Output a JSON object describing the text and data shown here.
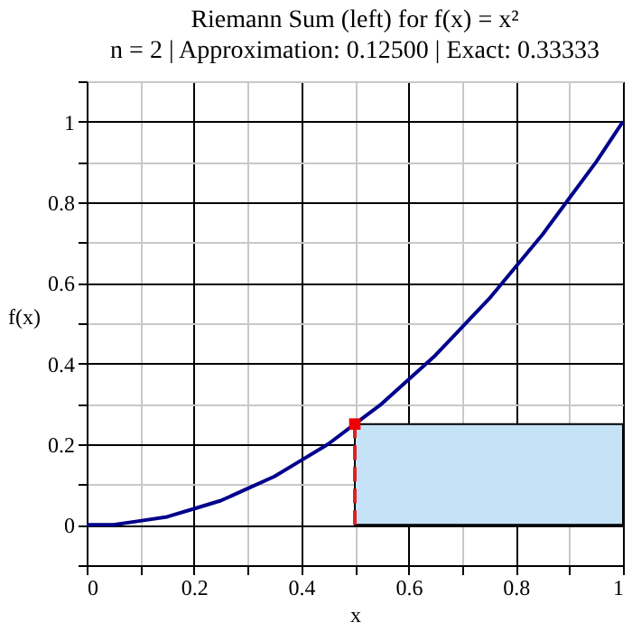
{
  "chart_data": {
    "type": "line",
    "title": "Riemann Sum (left) for f(x) = x²",
    "subtitle": "n = 2 | Approximation: 0.12500 | Exact: 0.33333",
    "xlabel": "x",
    "ylabel": "f(x)",
    "series": [
      {
        "type": "bar",
        "color": "#c6e2f7",
        "x": [
          0.25,
          0.75
        ],
        "values": [
          0,
          0.25
        ]
      },
      {
        "color": "#00008b",
        "line_style": "solid",
        "x": [
          0,
          0.05,
          0.1,
          0.15,
          0.2,
          0.25,
          0.3,
          0.35,
          0.4,
          0.45,
          0.5,
          0.55,
          0.6,
          0.65,
          0.7,
          0.75,
          0.8,
          0.85,
          0.9,
          0.95,
          1
        ],
        "values": [
          0,
          0.0,
          0.01,
          0.02,
          0.04,
          0.06,
          0.09,
          0.12,
          0.16,
          0.2,
          0.25,
          0.3,
          0.36,
          0.42,
          0.49,
          0.56,
          0.64,
          0.72,
          0.81,
          0.9,
          1
        ]
      },
      {
        "type": "line",
        "color": "#dd2222",
        "line_style": "dashed",
        "x": [
          0.5,
          0.5
        ],
        "values": [
          0,
          0.25
        ]
      },
      {
        "type": "scatter",
        "color": "#ee0000",
        "marker": "square",
        "x": [
          0.5
        ],
        "values": [
          0.25
        ]
      }
    ],
    "xlim": [
      0,
      1
    ],
    "ylim": [
      -0.1,
      1.1
    ],
    "xticks": [
      0,
      {
        "value": 0.1,
        "label": null
      },
      0.2,
      {
        "value": 0.3,
        "label": null
      },
      0.4,
      {
        "value": 0.5,
        "label": null
      },
      0.6,
      {
        "value": 0.7,
        "label": null
      },
      0.8,
      {
        "value": 0.9,
        "label": null
      },
      1
    ],
    "yticks": [
      {
        "value": -0.1,
        "label": null
      },
      0,
      {
        "value": 0.1,
        "label": null
      },
      0.2,
      {
        "value": 0.3,
        "label": null
      },
      0.4,
      {
        "value": 0.5,
        "label": null
      },
      0.6,
      {
        "value": 0.7,
        "label": null
      },
      0.8,
      {
        "value": 0.9,
        "label": null
      },
      1,
      {
        "value": 1.1,
        "label": null
      }
    ],
    "grid": true
  }
}
